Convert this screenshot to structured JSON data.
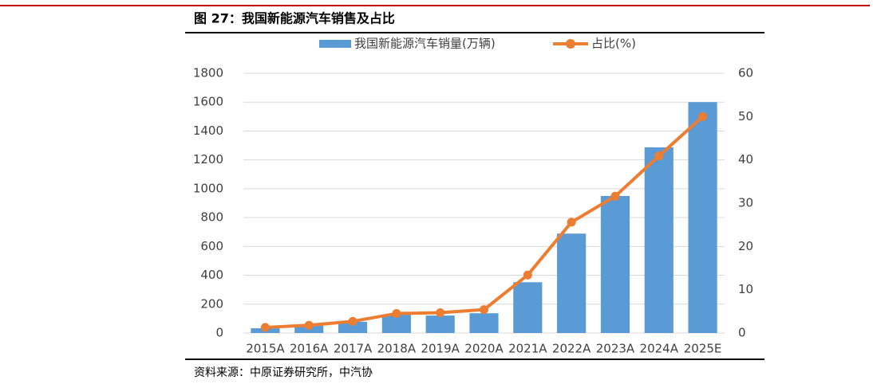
{
  "chart_data": {
    "type": "bar-line",
    "title": "图 27：我国新能源汽车销售及占比",
    "source": "资料来源：中原证券研究所，中汽协",
    "categories": [
      "2015A",
      "2016A",
      "2017A",
      "2018A",
      "2019A",
      "2020A",
      "2021A",
      "2022A",
      "2023A",
      "2024A",
      "2025E"
    ],
    "series": [
      {
        "name": "我国新能源汽车销量(万辆)",
        "type": "bar",
        "color": "#5b9bd5",
        "values": [
          33,
          51,
          78,
          126,
          121,
          137,
          352,
          689,
          950,
          1287,
          1600
        ]
      },
      {
        "name": "占比(%)",
        "type": "line",
        "axis": "y2",
        "color": "#ed7d31",
        "values": [
          1.3,
          1.8,
          2.7,
          4.5,
          4.7,
          5.4,
          13.4,
          25.6,
          31.6,
          40.9,
          50
        ]
      }
    ],
    "ylim": [
      0,
      1800
    ],
    "yticks": [
      0,
      200,
      400,
      600,
      800,
      1000,
      1200,
      1400,
      1600,
      1800
    ],
    "y2lim": [
      0,
      60
    ],
    "y2ticks": [
      0,
      10,
      20,
      30,
      40,
      50,
      60
    ],
    "grid": true
  }
}
